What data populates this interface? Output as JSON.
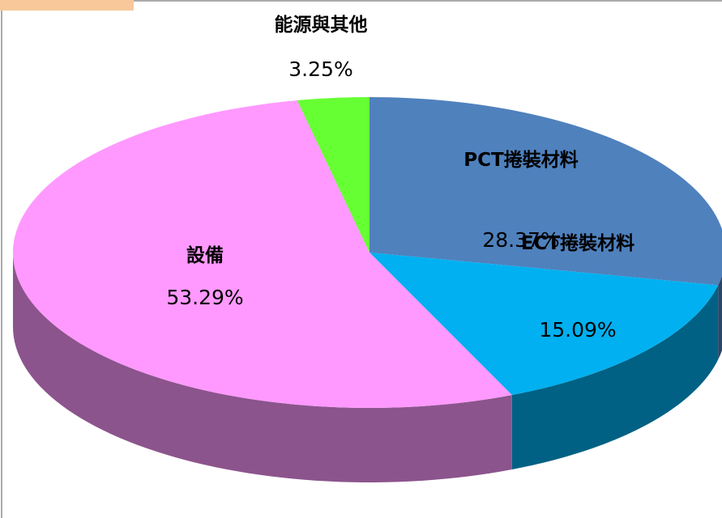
{
  "chart_data": {
    "type": "pie3d",
    "categories": [
      "PCT捲裝材料",
      "ECT捲裝材料",
      "設備",
      "能源與其他"
    ],
    "values": [
      28.37,
      15.09,
      53.29,
      3.25
    ],
    "value_labels": [
      "28.37%",
      "15.09%",
      "53.29%",
      "3.25%"
    ],
    "colors": [
      "#4f81bd",
      "#00b0f0",
      "#ff99ff",
      "#66ff33"
    ]
  }
}
